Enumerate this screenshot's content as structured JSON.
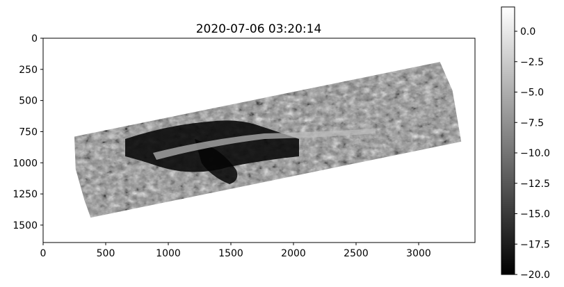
{
  "chart_data": {
    "type": "heatmap",
    "title": "2020-07-06 03:20:14",
    "xlabel": "",
    "ylabel": "",
    "xlim": [
      0,
      3450
    ],
    "ylim": [
      1640,
      0
    ],
    "xticks": [
      0,
      500,
      1000,
      1500,
      2000,
      2500,
      3000
    ],
    "yticks": [
      0,
      250,
      500,
      750,
      1000,
      1250,
      1500
    ],
    "xtick_labels": [
      "0",
      "500",
      "1000",
      "1500",
      "2000",
      "2500",
      "3000"
    ],
    "ytick_labels": [
      "0",
      "250",
      "500",
      "750",
      "1000",
      "1250",
      "1500"
    ],
    "grid": false,
    "colormap": "gray",
    "colorbar": {
      "vmin": -20.0,
      "vmax": 2.0,
      "ticks": [
        0.0,
        -2.5,
        -5.0,
        -7.5,
        -10.0,
        -12.5,
        -15.0,
        -17.5,
        -20.0
      ],
      "tick_labels": [
        "0.0",
        "−2.5",
        "−5.0",
        "−7.5",
        "−10.0",
        "−12.5",
        "−15.0",
        "−17.5",
        "−20.0"
      ]
    },
    "swath_polygon": [
      [
        250,
        790
      ],
      [
        3170,
        190
      ],
      [
        3270,
        420
      ],
      [
        3340,
        830
      ],
      [
        380,
        1440
      ],
      [
        330,
        1300
      ],
      [
        260,
        1050
      ]
    ],
    "swath_mean_value": -10.0,
    "nodata_color": "#ffffff"
  }
}
